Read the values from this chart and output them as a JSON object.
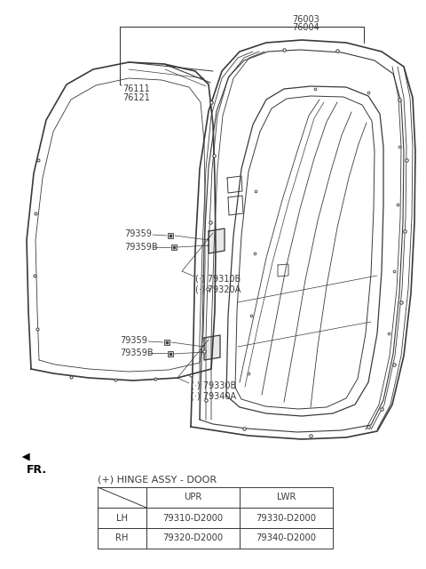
{
  "bg_color": "#ffffff",
  "line_color": "#3a3a3a",
  "text_color": "#3a3a3a",
  "labels": {
    "part_76003": "76003",
    "part_76004": "76004",
    "part_76111": "76111",
    "part_76121": "76121",
    "part_79310B": "(·) 79310B",
    "part_79320A": "(·) 79320A",
    "part_79330B": "(·) 79330B",
    "part_79340A": "(·) 79340A",
    "part_79359_1": "79359",
    "part_79359B_1": "79359B",
    "part_79359_2": "79359",
    "part_79359B_2": "79359B",
    "fr_label": "FR.",
    "hinge_title": "(+) HINGE ASSY - DOOR"
  },
  "table": {
    "headers": [
      "",
      "UPR",
      "LWR"
    ],
    "rows": [
      [
        "LH",
        "79310-D2000",
        "79330-D2000"
      ],
      [
        "RH",
        "79320-D2000",
        "79340-D2000"
      ]
    ]
  }
}
